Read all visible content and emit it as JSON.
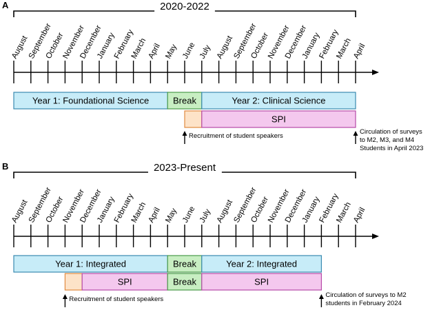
{
  "colors": {
    "year_fill": "#c7ecf8",
    "year_stroke": "#3a8ab0",
    "break_fill": "#c8eec2",
    "break_stroke": "#4a9a4a",
    "spi_fill": "#f4c8ee",
    "spi_stroke": "#b64aa8",
    "recruit_fill": "#fde3c8",
    "recruit_stroke": "#e08a40"
  },
  "panels": [
    {
      "letter": "A",
      "title": "2020-2022",
      "months": [
        "August",
        "September",
        "October",
        "November",
        "December",
        "January",
        "February",
        "March",
        "April",
        "May",
        "June",
        "July",
        "August",
        "September",
        "October",
        "November",
        "December",
        "January",
        "February",
        "March",
        "April"
      ],
      "rows": [
        [
          {
            "label": "Year 1: Foundational Science",
            "start": 0,
            "end": 9,
            "kind": "year"
          },
          {
            "label": "Break",
            "start": 9,
            "end": 11,
            "kind": "break"
          },
          {
            "label": "Year 2: Clinical Science",
            "start": 11,
            "end": 20,
            "kind": "year"
          }
        ],
        [
          {
            "label": "",
            "start": 10,
            "end": 11,
            "kind": "recruit"
          },
          {
            "label": "SPI",
            "start": 11,
            "end": 20,
            "kind": "spi"
          }
        ]
      ],
      "notes": [
        {
          "index": 10,
          "lines": [
            "Recruitment of student speakers"
          ],
          "side": "right"
        },
        {
          "index": 20,
          "lines": [
            "Circulation of surveys",
            "to M2, M3, and M4",
            "Students in April 2023"
          ],
          "side": "right"
        }
      ]
    },
    {
      "letter": "B",
      "title": "2023-Present",
      "months": [
        "August",
        "September",
        "October",
        "November",
        "December",
        "January",
        "February",
        "March",
        "April",
        "May",
        "June",
        "July",
        "August",
        "September",
        "October",
        "November",
        "December",
        "January",
        "February",
        "March",
        "April"
      ],
      "rows": [
        [
          {
            "label": "Year 1: Integrated",
            "start": 0,
            "end": 9,
            "kind": "year"
          },
          {
            "label": "Break",
            "start": 9,
            "end": 11,
            "kind": "break"
          },
          {
            "label": "Year 2: Integrated",
            "start": 11,
            "end": 18,
            "kind": "year"
          }
        ],
        [
          {
            "label": "",
            "start": 3,
            "end": 4,
            "kind": "recruit"
          },
          {
            "label": "SPI",
            "start": 4,
            "end": 9,
            "kind": "spi"
          },
          {
            "label": "Break",
            "start": 9,
            "end": 11,
            "kind": "break"
          },
          {
            "label": "SPI",
            "start": 11,
            "end": 18,
            "kind": "spi"
          }
        ]
      ],
      "notes": [
        {
          "index": 3,
          "lines": [
            "Recruitment of student speakers"
          ],
          "side": "right"
        },
        {
          "index": 18,
          "lines": [
            "Circulation of surveys to M2",
            "students in February 2024"
          ],
          "side": "right"
        }
      ]
    }
  ]
}
